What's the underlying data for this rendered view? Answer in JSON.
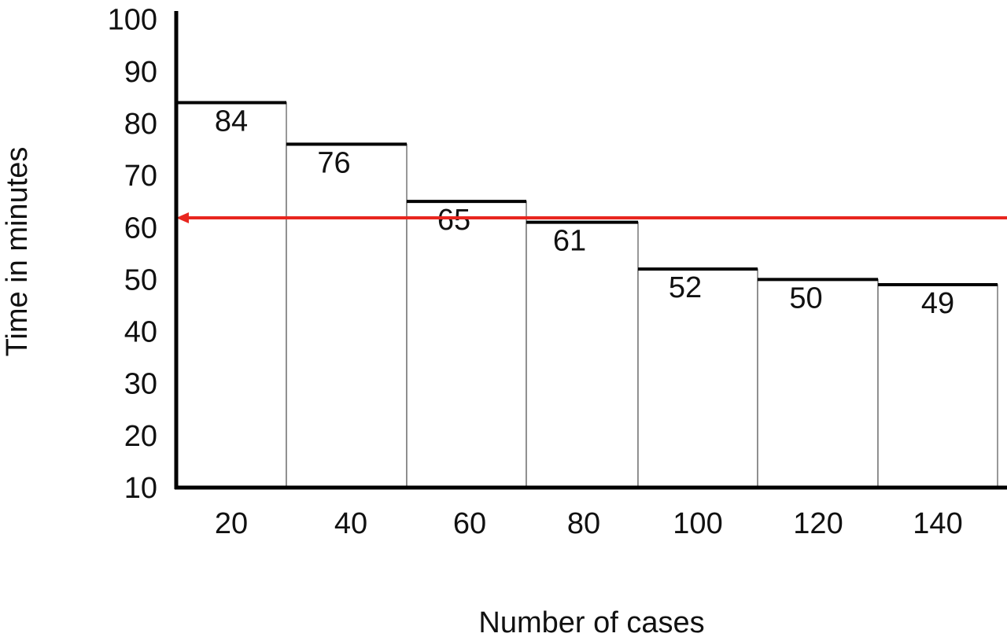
{
  "chart_data": {
    "type": "bar",
    "xlabel": "Number of cases",
    "ylabel": "Time in minutes",
    "categories": [
      "20",
      "40",
      "60",
      "80",
      "100",
      "120",
      "140"
    ],
    "values": [
      84,
      76,
      65,
      61,
      52,
      50,
      49
    ],
    "data_labels": [
      "84",
      "76",
      "65",
      "61",
      "52",
      "50",
      "49"
    ],
    "ylim": [
      10,
      100
    ],
    "yticks": [
      100,
      90,
      80,
      70,
      60,
      50,
      40,
      30,
      20,
      10
    ],
    "ytick_labels": [
      "100",
      "90",
      "80",
      "70",
      "60",
      "50",
      "40",
      "30",
      "20",
      "10"
    ],
    "reference_line": {
      "value": 62,
      "color": "#e8261f",
      "arrow": "left"
    },
    "bar_fill": "#ffffff",
    "bar_top_stroke": "#000000",
    "grid": false,
    "legend": "none"
  }
}
